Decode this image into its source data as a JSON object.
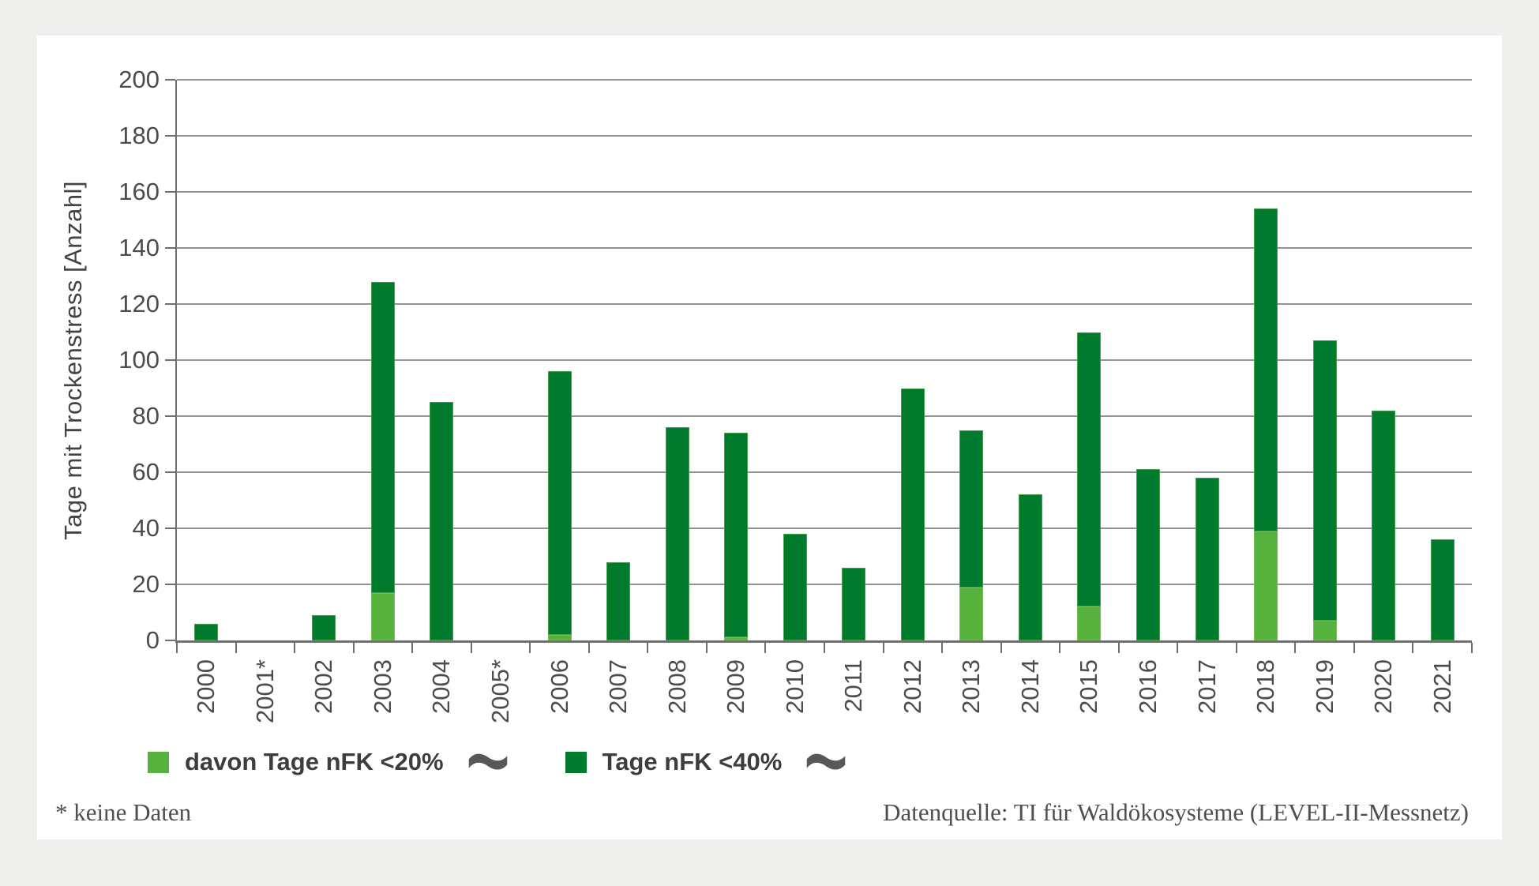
{
  "page": {
    "background": "#efefee",
    "panel_color": "#ffffff"
  },
  "chart_data": {
    "type": "bar",
    "stacked": true,
    "title": "",
    "ylabel": "Tage mit Trockenstress [Anzahl]",
    "xlabel": "",
    "ylim": [
      0,
      200
    ],
    "yticks": [
      0,
      20,
      40,
      60,
      80,
      100,
      120,
      140,
      160,
      180,
      200
    ],
    "grid": true,
    "legend_position": "bottom",
    "categories": [
      "2000",
      "2001*",
      "2002",
      "2003",
      "2004",
      "2005*",
      "2006",
      "2007",
      "2008",
      "2009",
      "2010",
      "2011",
      "2012",
      "2013",
      "2014",
      "2015",
      "2016",
      "2017",
      "2018",
      "2019",
      "2020",
      "2021"
    ],
    "no_data_years": [
      "2001*",
      "2005*"
    ],
    "series": [
      {
        "name": "davon Tage nFK <20%",
        "color": "#56b23c",
        "values": [
          0,
          null,
          0,
          17,
          0,
          null,
          2,
          0,
          0,
          1,
          0,
          0,
          0,
          19,
          0,
          12,
          0,
          0,
          39,
          7,
          0,
          0
        ]
      },
      {
        "name": "Tage nFK <40%",
        "color": "#007b2d",
        "values": [
          6,
          null,
          9,
          128,
          85,
          null,
          96,
          28,
          76,
          74,
          38,
          26,
          90,
          75,
          52,
          110,
          61,
          58,
          154,
          107,
          82,
          36
        ]
      }
    ]
  },
  "legend": {
    "items": [
      {
        "label": "davon Tage nFK <20%",
        "swatch_color": "#56b23c",
        "trailing_icon": "wave-icon"
      },
      {
        "label": "Tage nFK <40%",
        "swatch_color": "#007b2d",
        "trailing_icon": "wave-icon"
      }
    ]
  },
  "footer": {
    "note": "* keine Daten",
    "source": "Datenquelle: TI für Waldökosysteme (LEVEL-II-Messnetz)"
  },
  "colors": {
    "dark_green": "#007b2d",
    "light_green": "#56b23c",
    "grid": "#939393",
    "axis": "#6f6f6f",
    "tick_text": "#4c4c4e",
    "legend_text": "#3d3d3f",
    "icon_grey": "#58585a",
    "footer_text": "#4f4f51"
  }
}
